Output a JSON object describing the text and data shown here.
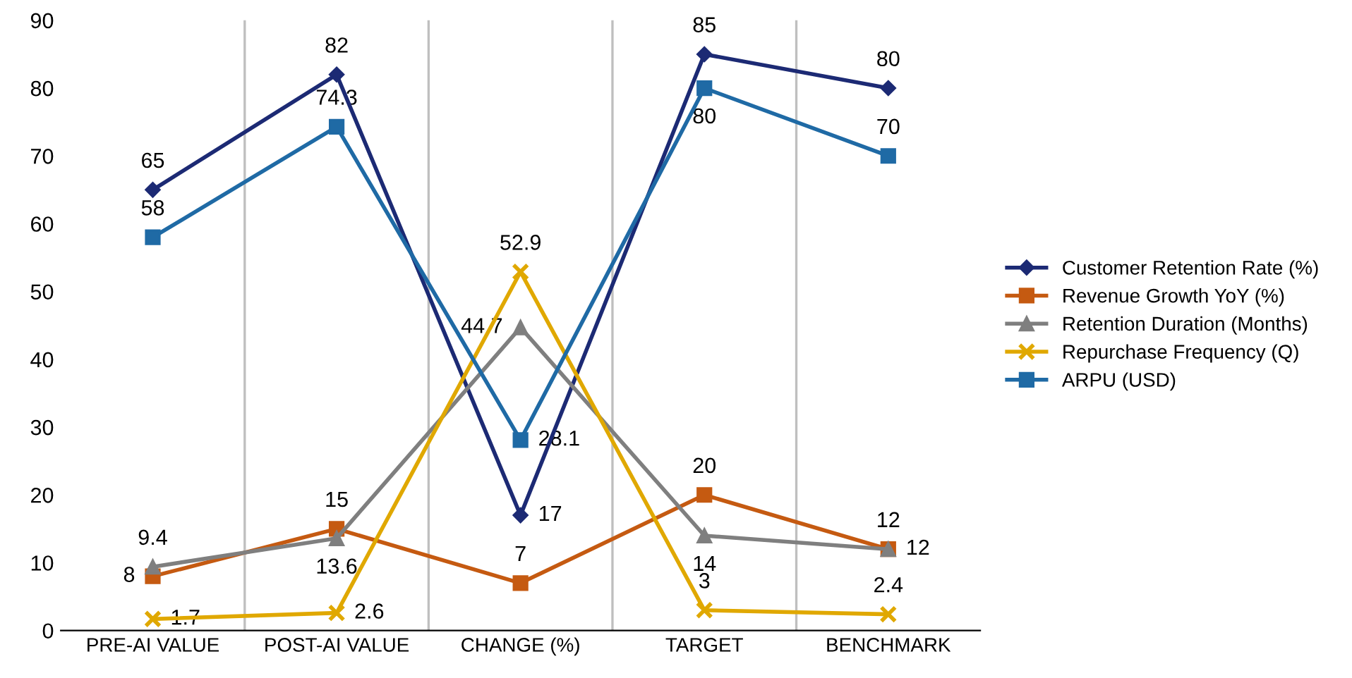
{
  "chart_data": {
    "type": "line",
    "categories": [
      "PRE-AI VALUE",
      "POST-AI VALUE",
      "CHANGE (%)",
      "TARGET",
      "BENCHMARK"
    ],
    "series": [
      {
        "name": "Customer Retention Rate (%)",
        "color": "#1c2a74",
        "marker": "diamond",
        "values": [
          65,
          82,
          17,
          85,
          80
        ]
      },
      {
        "name": "Revenue Growth YoY (%)",
        "color": "#c55a11",
        "marker": "square",
        "values": [
          8,
          15,
          7,
          20,
          12
        ]
      },
      {
        "name": "Retention Duration (Months)",
        "color": "#7f7f7f",
        "marker": "triangle",
        "values": [
          9.4,
          13.6,
          44.7,
          14,
          12
        ]
      },
      {
        "name": "Repurchase Frequency (Q)",
        "color": "#e0a800",
        "marker": "cross",
        "values": [
          1.7,
          2.6,
          52.9,
          3,
          2.4
        ]
      },
      {
        "name": "ARPU (USD)",
        "color": "#1f6aa5",
        "marker": "square",
        "values": [
          58,
          74.3,
          28.1,
          80,
          70
        ]
      }
    ],
    "ylim": [
      0,
      90
    ],
    "yticks": [
      0,
      10,
      20,
      30,
      40,
      50,
      60,
      70,
      80,
      90
    ],
    "grid": "x",
    "legend": "right",
    "data_labels": true,
    "line_style": "solid"
  }
}
